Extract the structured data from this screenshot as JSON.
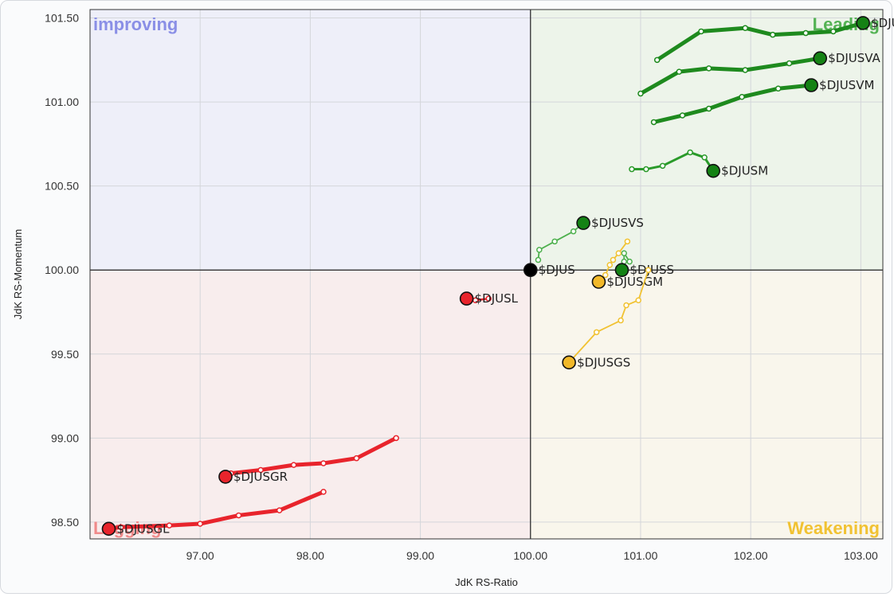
{
  "chart_data": {
    "type": "scatter",
    "subtype": "relative-rotation-graph",
    "xlabel": "JdK RS-Ratio",
    "ylabel": "JdK RS-Momentum",
    "xlim": [
      96.0,
      103.2
    ],
    "ylim": [
      98.4,
      101.55
    ],
    "x_ticks": [
      "97.00",
      "98.00",
      "99.00",
      "100.00",
      "101.00",
      "102.00",
      "103.00"
    ],
    "y_ticks": [
      "98.50",
      "99.00",
      "99.50",
      "100.00",
      "100.50",
      "101.00",
      "101.50"
    ],
    "grid": true,
    "center": [
      100,
      100
    ],
    "quadrants": [
      {
        "name": "Improving",
        "label": "improving",
        "position": "top-left",
        "color": "#8a8fe6",
        "fill": "#eeeff9"
      },
      {
        "name": "Leading",
        "label": "Leading",
        "position": "top-right",
        "color": "#55b355",
        "fill": "#edf4ea"
      },
      {
        "name": "Lagging",
        "label": "Lagging",
        "position": "bottom-left",
        "color": "#f08a8a",
        "fill": "#f8eded"
      },
      {
        "name": "Weakening",
        "label": "Weakening",
        "position": "bottom-right",
        "color": "#f1c232",
        "fill": "#f9f6ec"
      }
    ],
    "series": [
      {
        "name": "$DJUSVI",
        "color": "#1e8a1e",
        "marker": "#148214",
        "width": 5,
        "points": [
          [
            101.15,
            101.25
          ],
          [
            101.55,
            101.42
          ],
          [
            101.95,
            101.44
          ],
          [
            102.2,
            101.4
          ],
          [
            102.5,
            101.41
          ],
          [
            102.75,
            101.42
          ],
          [
            103.02,
            101.47
          ]
        ]
      },
      {
        "name": "$DJUSVA",
        "color": "#1e8a1e",
        "marker": "#148214",
        "width": 5,
        "points": [
          [
            101.0,
            101.05
          ],
          [
            101.35,
            101.18
          ],
          [
            101.62,
            101.2
          ],
          [
            101.95,
            101.19
          ],
          [
            102.35,
            101.23
          ],
          [
            102.63,
            101.26
          ]
        ]
      },
      {
        "name": "$DJUSVM",
        "color": "#1e8a1e",
        "marker": "#148214",
        "width": 5,
        "points": [
          [
            101.12,
            100.88
          ],
          [
            101.38,
            100.92
          ],
          [
            101.62,
            100.96
          ],
          [
            101.92,
            101.03
          ],
          [
            102.25,
            101.08
          ],
          [
            102.55,
            101.1
          ]
        ]
      },
      {
        "name": "$DJUSM",
        "color": "#2a9a2a",
        "marker": "#148214",
        "width": 3,
        "points": [
          [
            100.92,
            100.6
          ],
          [
            101.05,
            100.6
          ],
          [
            101.2,
            100.62
          ],
          [
            101.45,
            100.7
          ],
          [
            101.58,
            100.67
          ],
          [
            101.66,
            100.59
          ]
        ]
      },
      {
        "name": "$DJUSVS",
        "color": "#4db04d",
        "marker": "#148214",
        "width": 1.8,
        "points": [
          [
            100.07,
            100.06
          ],
          [
            100.08,
            100.12
          ],
          [
            100.22,
            100.17
          ],
          [
            100.39,
            100.23
          ],
          [
            100.48,
            100.28
          ]
        ]
      },
      {
        "name": "$DJUSS",
        "color": "#4db04d",
        "marker": "#148214",
        "width": 1.8,
        "points": [
          [
            100.9,
            100.05
          ],
          [
            100.85,
            100.1
          ],
          [
            100.85,
            100.05
          ],
          [
            100.83,
            100.0
          ]
        ]
      },
      {
        "name": "$DJUS",
        "color": "#000000",
        "marker": "#000000",
        "width": 0,
        "points": [
          [
            100.0,
            100.0
          ]
        ]
      },
      {
        "name": "$DJUSGM",
        "color": "#f1c232",
        "marker": "#f1b829",
        "width": 1.8,
        "points": [
          [
            100.88,
            100.17
          ],
          [
            100.8,
            100.1
          ],
          [
            100.75,
            100.06
          ],
          [
            100.72,
            100.03
          ],
          [
            100.68,
            99.97
          ],
          [
            100.62,
            99.93
          ]
        ]
      },
      {
        "name": "$DJUSGS",
        "color": "#f1c232",
        "marker": "#f1b829",
        "width": 1.8,
        "points": [
          [
            101.07,
            100.0
          ],
          [
            100.98,
            99.82
          ],
          [
            100.87,
            99.79
          ],
          [
            100.82,
            99.7
          ],
          [
            100.6,
            99.63
          ],
          [
            100.35,
            99.45
          ]
        ]
      },
      {
        "name": "$DJUSL",
        "color": "#e8242c",
        "marker": "#e8242c",
        "width": 2.5,
        "points": [
          [
            99.62,
            99.83
          ],
          [
            99.5,
            99.82
          ],
          [
            99.42,
            99.83
          ]
        ]
      },
      {
        "name": "$DJUSGR",
        "color": "#e8242c",
        "marker": "#e8242c",
        "width": 5,
        "points": [
          [
            98.78,
            99.0
          ],
          [
            98.42,
            98.88
          ],
          [
            98.12,
            98.85
          ],
          [
            97.85,
            98.84
          ],
          [
            97.55,
            98.81
          ],
          [
            97.28,
            98.79
          ],
          [
            97.23,
            98.77
          ]
        ]
      },
      {
        "name": "$DJUSGL",
        "color": "#e8242c",
        "marker": "#e8242c",
        "width": 5,
        "points": [
          [
            98.12,
            98.68
          ],
          [
            97.72,
            98.57
          ],
          [
            97.35,
            98.54
          ],
          [
            97.0,
            98.49
          ],
          [
            96.72,
            98.48
          ],
          [
            96.28,
            98.47
          ],
          [
            96.17,
            98.46
          ]
        ]
      }
    ]
  }
}
